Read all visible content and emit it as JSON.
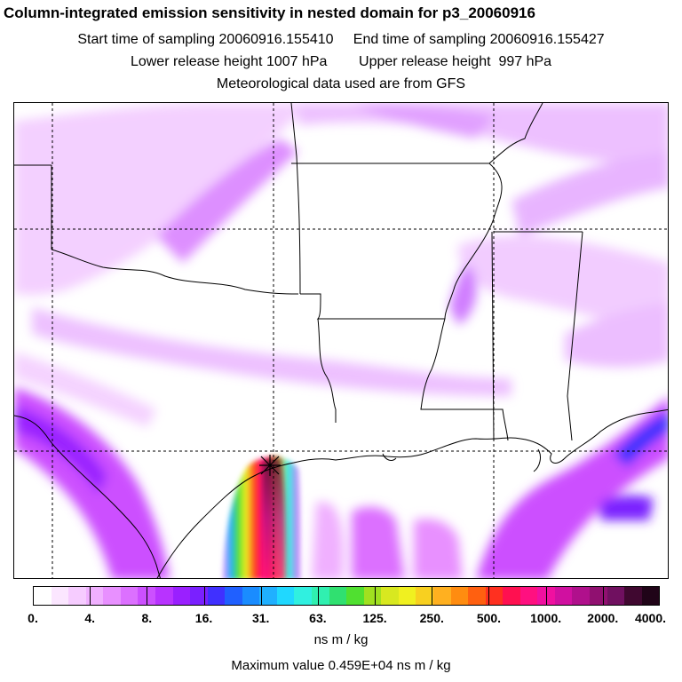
{
  "header": {
    "title": "Column-integrated emission sensitivity in nested domain for p3_20060916",
    "sampling_line": "Start time of sampling 20060916.155410     End time of sampling 20060916.155427",
    "release_line": "Lower release height 1007 hPa        Upper release height  997 hPa",
    "met_line": "Meteorological data used are from GFS"
  },
  "colorbar": {
    "tick_labels": [
      "0.",
      "4.",
      "8.",
      "16.",
      "31.",
      "63.",
      "125.",
      "250.",
      "500.",
      "1000.",
      "2000.",
      "4000."
    ],
    "colors": [
      "#ffffff",
      "#fbe6ff",
      "#f6ccff",
      "#f0b0ff",
      "#e890ff",
      "#dc70ff",
      "#cc50ff",
      "#b833ff",
      "#9a20ff",
      "#7a20ff",
      "#4030ff",
      "#2060ff",
      "#1a8cff",
      "#20b0ff",
      "#20d8ff",
      "#30f0e0",
      "#30f0b0",
      "#30e070",
      "#50e030",
      "#a0e020",
      "#d8e820",
      "#f0f020",
      "#f8d020",
      "#ffb020",
      "#ff8c10",
      "#ff6010",
      "#ff3020",
      "#ff1050",
      "#ff1080",
      "#f010a0",
      "#d010a0",
      "#b0108c",
      "#901070",
      "#701060",
      "#400830",
      "#200418"
    ],
    "units": "ns m / kg",
    "max_value_label": "Maximum value  0.459E+04 ns m / kg"
  },
  "map": {
    "release_marker": "release-point-marker",
    "region": "Texas / Louisiana / Gulf of Mexico nested domain"
  }
}
